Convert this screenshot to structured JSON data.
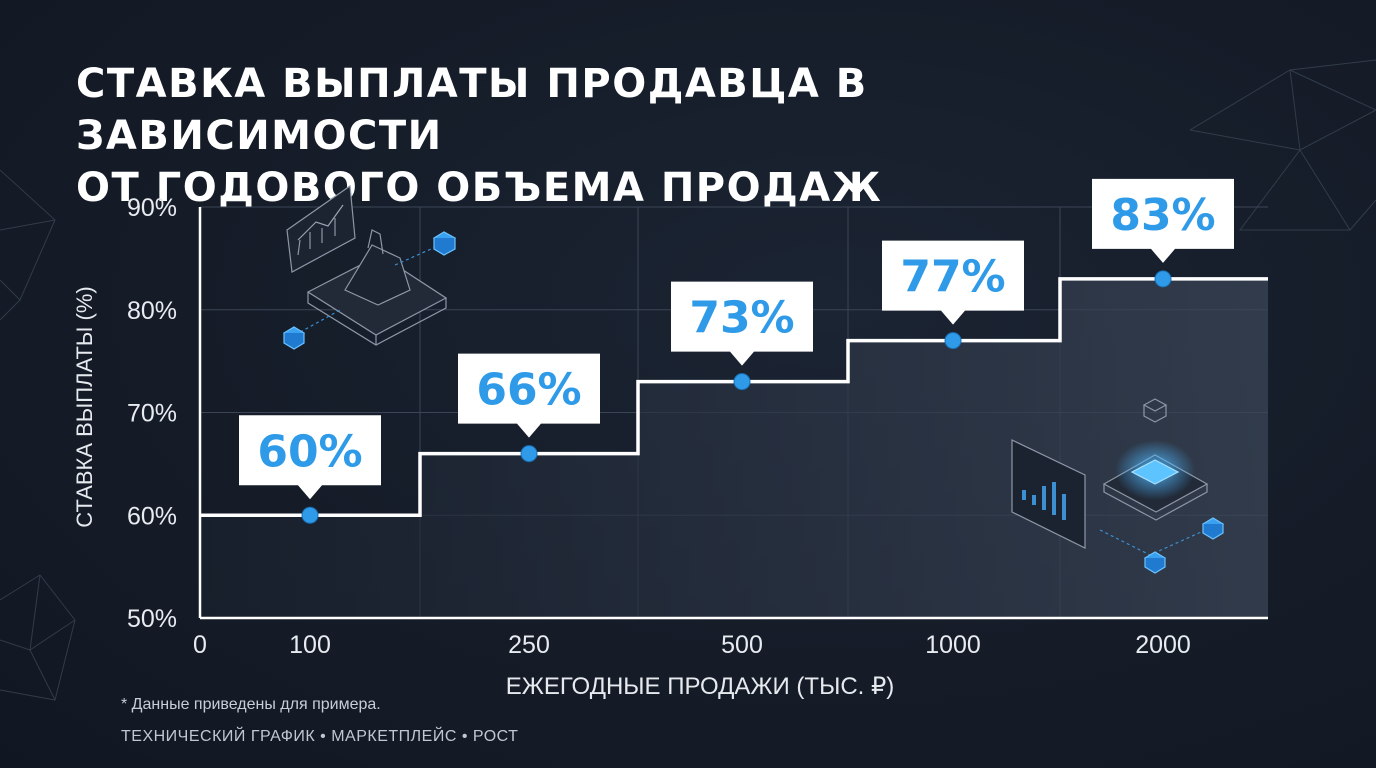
{
  "title_lines": [
    "СТАВКА ВЫПЛАТЫ ПРОДАВЦА В ЗАВИСИМОСТИ",
    "ОТ ГОДОВОГО ОБЪЕМА ПРОДАЖ"
  ],
  "footnote": "* Данные приведены для примера.",
  "tagline": "ТЕХНИЧЕСКИЙ ГРАФИК • МАРКЕТПЛЕЙС • РОСТ",
  "colors": {
    "accent": "#2f9be8",
    "line": "#ffffff",
    "background": "#151c28"
  },
  "icons": [
    "server-chart-icon",
    "dashboard-cube-icon",
    "polygon-mesh-decoration"
  ],
  "chart_data": {
    "type": "line",
    "step": true,
    "title": "СТАВКА ВЫПЛАТЫ ПРОДАВЦА В ЗАВИСИМОСТИ ОТ ГОДОВОГО ОБЪЕМА ПРОДАЖ",
    "xlabel": "ЕЖЕГОДНЫЕ ПРОДАЖИ (ТЫС. ₽)",
    "ylabel": "СТАВКА ВЫПЛАТЫ (%)",
    "x_origin_label": "0",
    "categories": [
      "100",
      "250",
      "500",
      "1000",
      "2000"
    ],
    "values": [
      60,
      66,
      73,
      77,
      83
    ],
    "data_labels": [
      "60%",
      "66%",
      "73%",
      "77%",
      "83%"
    ],
    "y_ticks": [
      "50%",
      "60%",
      "70%",
      "80%",
      "90%"
    ],
    "ylim": [
      50,
      90
    ],
    "grid": true,
    "area_fill": true
  }
}
